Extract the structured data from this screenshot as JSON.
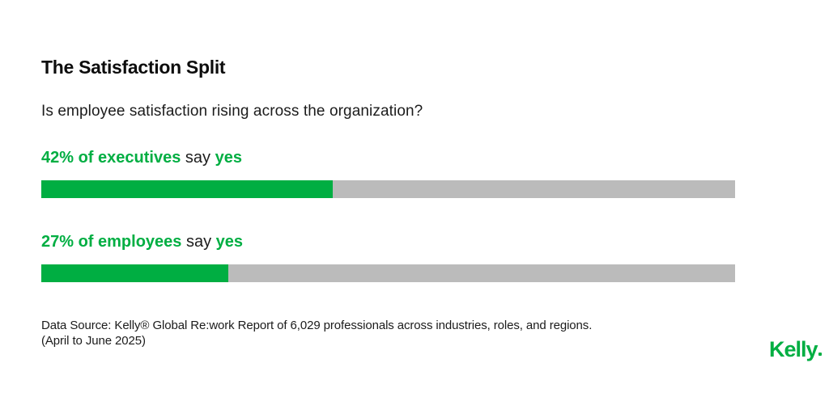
{
  "page": {
    "title": "The Satisfaction Split",
    "subtitle": "Is employee satisfaction rising across the organization?"
  },
  "chart_data": {
    "type": "bar",
    "title": "The Satisfaction Split",
    "subtitle": "Is employee satisfaction rising across the organization?",
    "orientation": "horizontal",
    "categories": [
      "executives",
      "employees"
    ],
    "values": [
      42,
      27
    ],
    "unit": "%",
    "xlim": [
      0,
      100
    ],
    "grid": false,
    "legend": false,
    "bars": [
      {
        "value": 42,
        "label_value": "42% of executives",
        "label_mid": "say",
        "label_end": "yes"
      },
      {
        "value": 27,
        "label_value": "27% of employees",
        "label_mid": "say",
        "label_end": "yes"
      }
    ]
  },
  "footer": {
    "source_line1": "Data Source: Kelly® Global Re:work Report of 6,029 professionals across industries, roles, and regions.",
    "source_line2": "(April to June 2025)",
    "logo_text": "Kelly"
  },
  "colors": {
    "accent_green": "#00AE42",
    "bar_gray": "#BBBBBB",
    "text_black": "#1B1B1B"
  }
}
